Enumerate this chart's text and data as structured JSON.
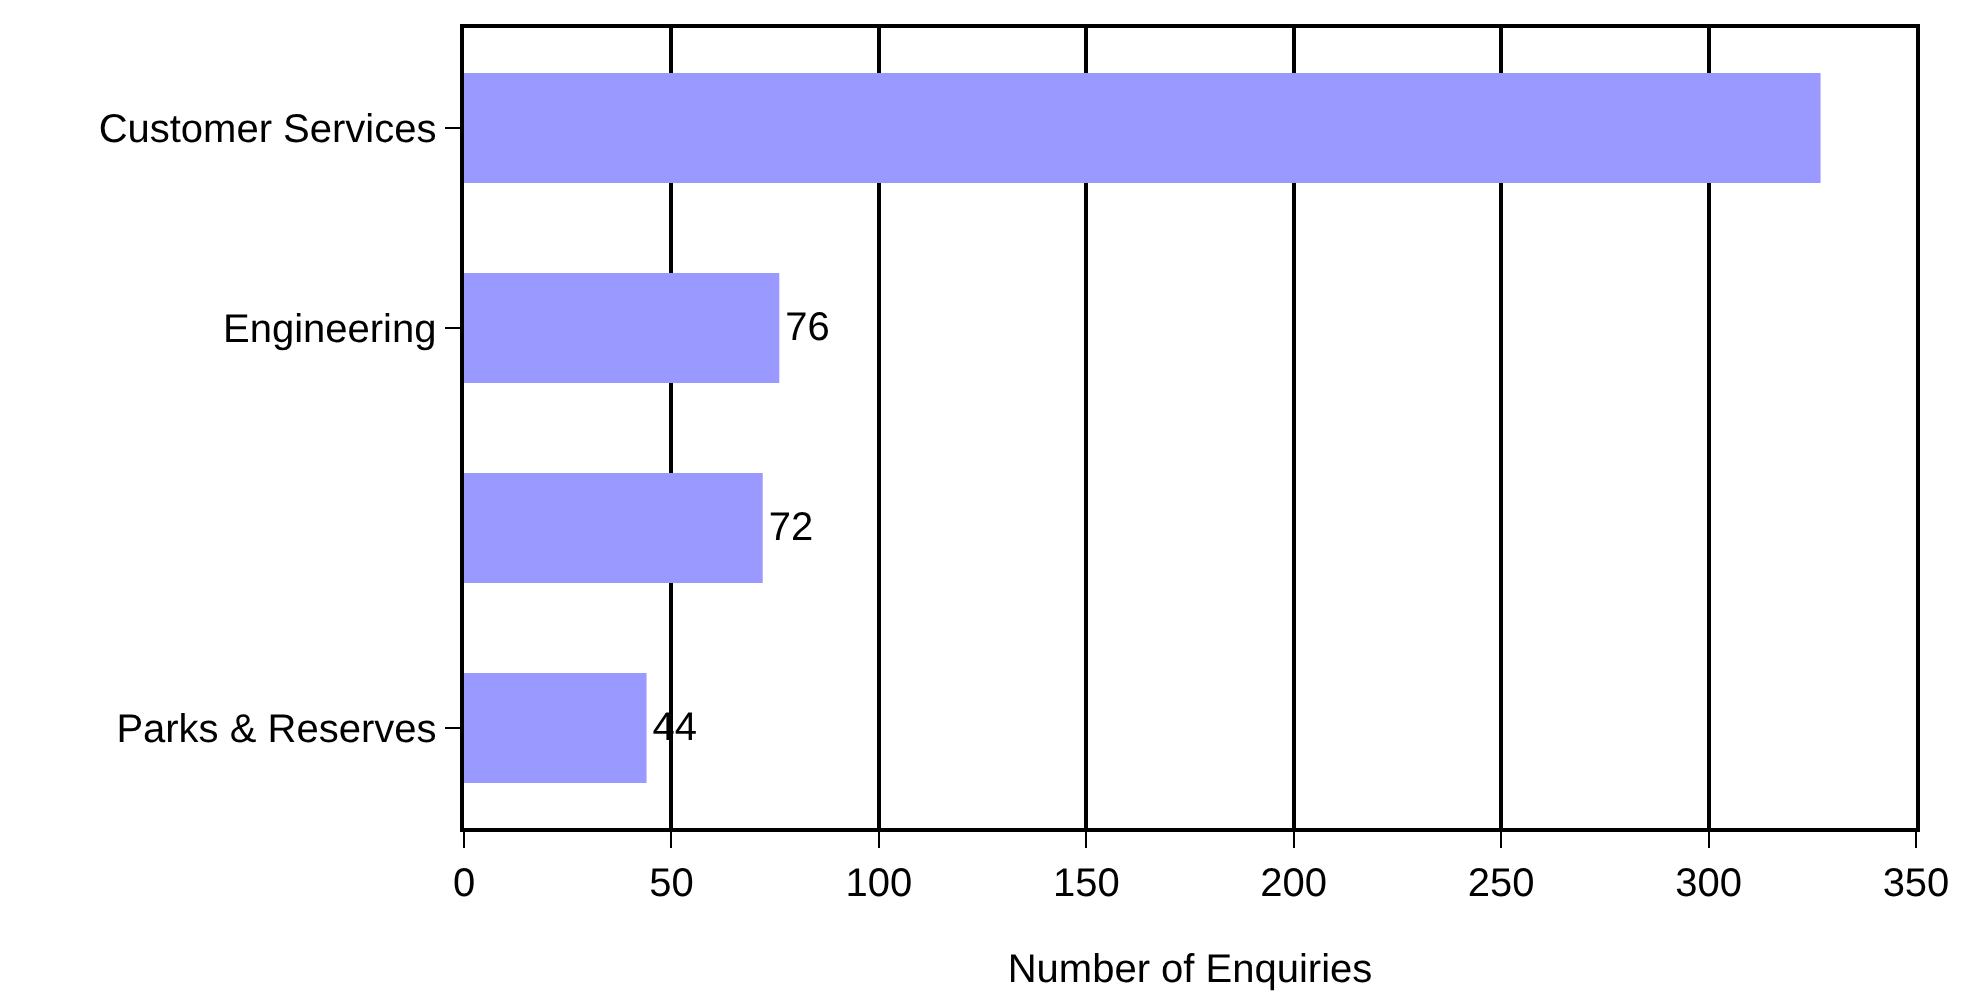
{
  "chart_data": {
    "type": "bar",
    "orientation": "horizontal",
    "xlabel": "Number of Enquiries",
    "categories": [
      "Customer Services",
      "Engineering",
      null,
      "Parks & Reserves"
    ],
    "values": [
      327,
      76,
      72,
      44
    ],
    "value_labels": [
      null,
      "76",
      "72",
      "44"
    ],
    "color": "#9999ff",
    "xlim": [
      0,
      350
    ],
    "xticks": [
      0,
      50,
      100,
      150,
      200,
      250,
      300,
      350
    ],
    "grid": "x",
    "legend": false
  }
}
